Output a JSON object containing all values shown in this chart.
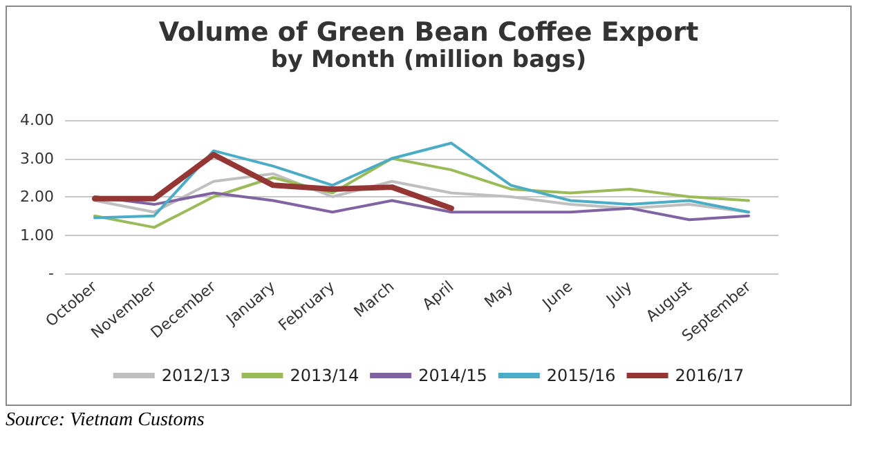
{
  "chart_data": {
    "type": "line",
    "title": "Volume of Green Bean Coffee Export",
    "subtitle": "by Month (million bags)",
    "annotations": [
      "Source: Vietnam Customs"
    ],
    "categories": [
      "October",
      "November",
      "December",
      "January",
      "February",
      "March",
      "April",
      "May",
      "June",
      "July",
      "August",
      "September"
    ],
    "series": [
      {
        "name": "2012/13",
        "color": "#bfbfbf",
        "values": [
          1.9,
          1.6,
          2.4,
          2.6,
          2.0,
          2.4,
          2.1,
          2.0,
          1.8,
          1.7,
          1.8,
          1.6
        ]
      },
      {
        "name": "2013/14",
        "color": "#9bbb59",
        "values": [
          1.5,
          1.2,
          2.0,
          2.5,
          2.1,
          3.0,
          2.7,
          2.2,
          2.1,
          2.2,
          2.0,
          1.9
        ]
      },
      {
        "name": "2014/15",
        "color": "#8064a2",
        "values": [
          2.0,
          1.8,
          2.1,
          1.9,
          1.6,
          1.9,
          1.6,
          1.6,
          1.6,
          1.7,
          1.4,
          1.5
        ]
      },
      {
        "name": "2015/16",
        "color": "#4bacc6",
        "values": [
          1.45,
          1.5,
          3.2,
          2.8,
          2.3,
          3.0,
          3.4,
          2.3,
          1.9,
          1.8,
          1.9,
          1.6
        ]
      },
      {
        "name": "2016/17",
        "color": "#943634",
        "values": [
          1.95,
          1.95,
          3.1,
          2.3,
          2.2,
          2.25,
          1.7,
          null,
          null,
          null,
          null,
          null
        ]
      }
    ],
    "ylim": [
      0,
      4
    ],
    "yticks": [
      {
        "value": 0,
        "label": "-"
      },
      {
        "value": 1,
        "label": "1.00"
      },
      {
        "value": 2,
        "label": "2.00"
      },
      {
        "value": 3,
        "label": "3.00"
      },
      {
        "value": 4,
        "label": "4.00"
      }
    ],
    "grid": "y",
    "legend": "bottom",
    "marker": "none",
    "line_style": "solid"
  }
}
